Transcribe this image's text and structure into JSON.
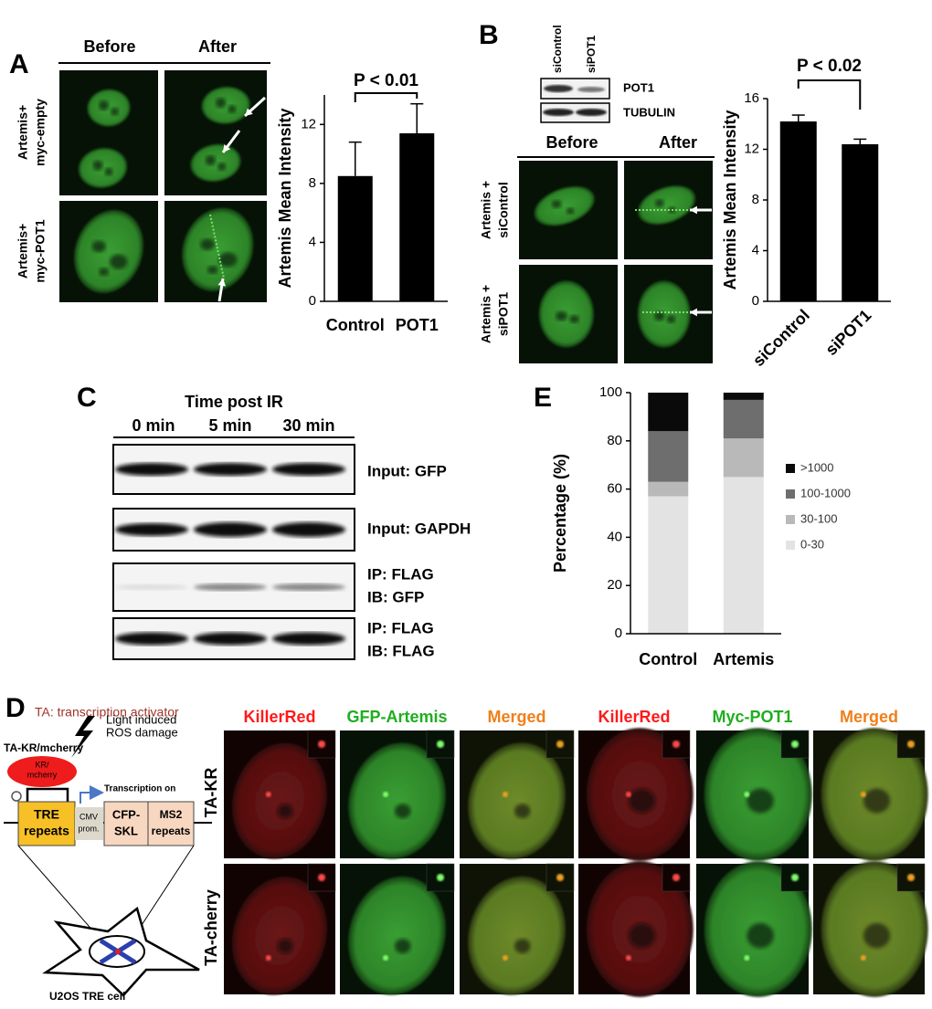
{
  "panel_labels": [
    "A",
    "B",
    "C",
    "D",
    "E"
  ],
  "panel_a": {
    "columns": [
      "Before",
      "After"
    ],
    "rows": [
      [
        "Artemis+",
        "myc-empty"
      ],
      [
        "Artemis+",
        "myc-POT1"
      ]
    ]
  },
  "panel_b": {
    "blot_lanes": [
      "siControl",
      "siPOT1"
    ],
    "blot_rows": [
      "POT1",
      "TUBULIN"
    ],
    "columns": [
      "Before",
      "After"
    ],
    "rows": [
      [
        "Artemis +",
        "siControl"
      ],
      [
        "Artemis +",
        "siPOT1"
      ]
    ]
  },
  "panel_c": {
    "title": "Time post IR",
    "lanes": [
      "0 min",
      "5 min",
      "30 min"
    ],
    "blots": [
      [
        "Input: GFP"
      ],
      [
        "Input: GAPDH"
      ],
      [
        "IP: FLAG",
        "IB: GFP"
      ],
      [
        "IP: FLAG",
        "IB: FLAG"
      ]
    ]
  },
  "panel_d": {
    "note": "TA: transcription activator",
    "diagram": {
      "activator": "TA-KR/mcherry",
      "damage": [
        "Light induced",
        "ROS damage"
      ],
      "protein": [
        "KR/",
        "mcherry"
      ],
      "transcription": "Transcription on",
      "tre": [
        "TRE",
        "repeats"
      ],
      "promoter": [
        "CMV",
        "prom."
      ],
      "reporter": [
        "CFP-",
        "SKL"
      ],
      "ms2": [
        "MS2",
        "repeats"
      ],
      "cell": "U2OS TRE cell"
    },
    "columns": [
      {
        "text": "KillerRed",
        "color": "#ff1a1a"
      },
      {
        "text": "GFP-Artemis",
        "color": "#1fae1f"
      },
      {
        "text": "Merged",
        "color": "#f07f1a"
      },
      {
        "text": "KillerRed",
        "color": "#ff1a1a"
      },
      {
        "text": "Myc-POT1",
        "color": "#1fae1f"
      },
      {
        "text": "Merged",
        "color": "#f07f1a"
      }
    ],
    "rows": [
      "TA-KR",
      "TA-cherry"
    ]
  },
  "chart_data": [
    {
      "type": "bar",
      "ylabel": "Artemis Mean Intensity",
      "annotation": "P < 0.01",
      "categories": [
        "Control",
        "POT1"
      ],
      "values": [
        8.5,
        11.4
      ],
      "errors": [
        2.3,
        2.0
      ],
      "color": "#000000",
      "ylim": [
        0,
        14
      ],
      "yticks": [
        0,
        4,
        8,
        12
      ]
    },
    {
      "type": "bar",
      "ylabel": "Artemis Mean Intensity",
      "annotation": "P < 0.02",
      "categories": [
        "siControl",
        "siPOT1"
      ],
      "values": [
        14.2,
        12.4
      ],
      "errors": [
        0.5,
        0.4
      ],
      "color": "#000000",
      "ylim": [
        0,
        16
      ],
      "yticks": [
        0,
        4,
        8,
        12,
        16
      ]
    },
    {
      "type": "stacked_bar",
      "ylabel": "Percentage (%)",
      "categories": [
        "Control",
        "Artemis"
      ],
      "series": [
        {
          "name": "0-30",
          "color": "#e3e3e3",
          "values": [
            57,
            65
          ]
        },
        {
          "name": "30-100",
          "color": "#b9b9b9",
          "values": [
            6,
            16
          ]
        },
        {
          "name": "100-1000",
          "color": "#6e6e6e",
          "values": [
            21,
            16
          ]
        },
        {
          "name": ">1000",
          "color": "#0a0a0a",
          "values": [
            16,
            3
          ]
        }
      ],
      "ylim": [
        0,
        100
      ],
      "yticks": [
        0,
        20,
        40,
        60,
        80,
        100
      ],
      "legend": "right"
    }
  ]
}
